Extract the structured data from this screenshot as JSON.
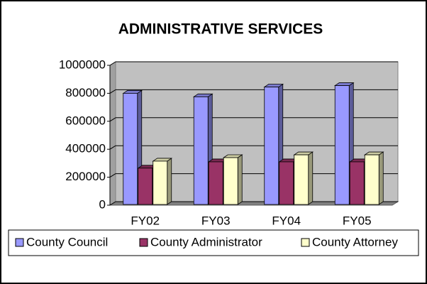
{
  "chart_data": {
    "type": "bar3d",
    "title": "ADMINISTRATIVE SERVICES",
    "categories": [
      "FY02",
      "FY03",
      "FY04",
      "FY05"
    ],
    "series": [
      {
        "name": "County Council",
        "color": "#9999ff",
        "values": [
          800000,
          775000,
          845000,
          855000
        ]
      },
      {
        "name": "County Administrator",
        "color": "#993366",
        "values": [
          265000,
          310000,
          310000,
          310000
        ]
      },
      {
        "name": "County Attorney",
        "color": "#ffffcc",
        "values": [
          315000,
          340000,
          360000,
          360000
        ]
      }
    ],
    "ylim": [
      0,
      1000000
    ],
    "yticks": [
      0,
      200000,
      400000,
      600000,
      800000,
      1000000
    ],
    "grid": true,
    "legend": "bottom"
  }
}
